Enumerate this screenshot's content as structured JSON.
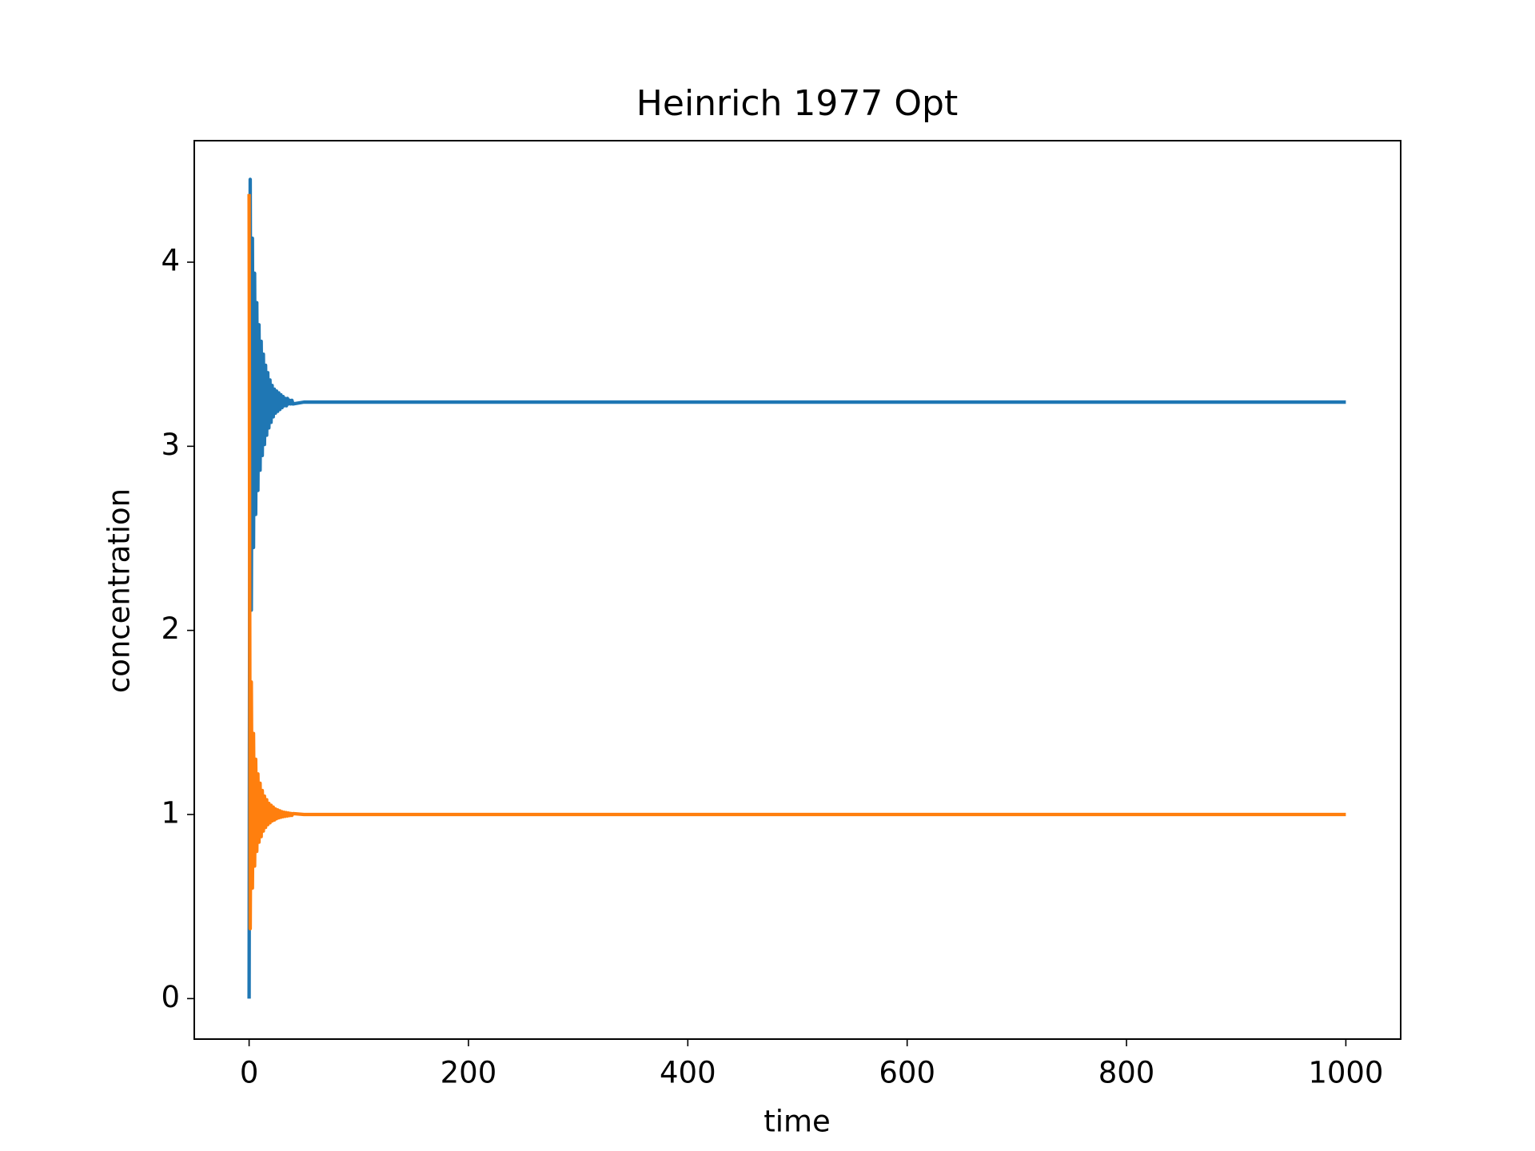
{
  "chart_data": {
    "type": "line",
    "title": "Heinrich 1977 Opt",
    "x_label": "time",
    "y_label": "concentration",
    "x": [
      0,
      1,
      2,
      3,
      4,
      5,
      6,
      7,
      8,
      9,
      10,
      11,
      12,
      13,
      14,
      15,
      16,
      17,
      18,
      19,
      20,
      21,
      22,
      23,
      24,
      25,
      26,
      27,
      28,
      29,
      30,
      31,
      32,
      33,
      34,
      35,
      36,
      37,
      38,
      39,
      40,
      50,
      100,
      1000
    ],
    "series": [
      {
        "color": "#1f77b4",
        "values": [
          0,
          4.45,
          2.11,
          4.13,
          2.45,
          3.94,
          2.63,
          3.78,
          2.76,
          3.66,
          2.87,
          3.57,
          2.95,
          3.5,
          3.01,
          3.44,
          3.06,
          3.4,
          3.1,
          3.36,
          3.13,
          3.33,
          3.16,
          3.31,
          3.18,
          3.3,
          3.19,
          3.29,
          3.2,
          3.28,
          3.21,
          3.27,
          3.22,
          3.26,
          3.22,
          3.26,
          3.23,
          3.25,
          3.23,
          3.25,
          3.23,
          3.24,
          3.24,
          3.24
        ]
      },
      {
        "color": "#ff7f0e",
        "values": [
          4.37,
          0.38,
          1.72,
          0.6,
          1.44,
          0.72,
          1.3,
          0.8,
          1.22,
          0.85,
          1.17,
          0.88,
          1.13,
          0.91,
          1.1,
          0.93,
          1.08,
          0.945,
          1.06,
          0.955,
          1.05,
          0.965,
          1.04,
          0.97,
          1.03,
          0.977,
          1.025,
          0.982,
          1.02,
          0.985,
          1.015,
          0.988,
          1.012,
          0.99,
          1.01,
          0.992,
          1.008,
          0.994,
          1.006,
          0.995,
          1.005,
          1,
          1,
          1
        ]
      }
    ],
    "xlim": [
      -50,
      1050
    ],
    "ylim": [
      -0.22,
      4.66
    ],
    "xticks": [
      0,
      200,
      400,
      600,
      800,
      1000
    ],
    "yticks": [
      0,
      1,
      2,
      3,
      4
    ]
  }
}
